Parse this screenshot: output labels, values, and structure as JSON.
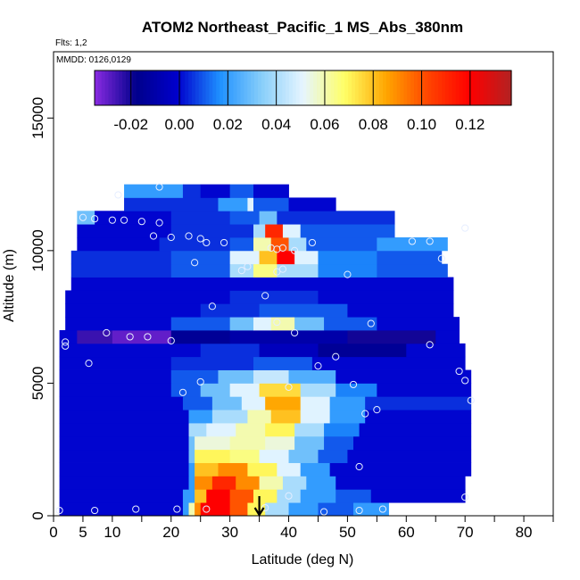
{
  "chart_data": {
    "type": "heatmap",
    "title": "ATOM2 Northeast_Pacific_1 MS_Abs_380nm",
    "annotations": [
      "Flts: 1,2",
      "MMDD: 0126,0129"
    ],
    "xlabel": "Latitude (deg N)",
    "ylabel": "Altitude (m)",
    "xlim": [
      0,
      85
    ],
    "ylim": [
      0,
      17500
    ],
    "x_tick_labels": [
      "0",
      "5",
      "10",
      "20",
      "30",
      "40",
      "50",
      "60",
      "70",
      "80"
    ],
    "x_tick_values": [
      0,
      5,
      10,
      20,
      30,
      40,
      50,
      60,
      70,
      80
    ],
    "x_minor_ticks": [
      15,
      25,
      35,
      45,
      55,
      65,
      75,
      85
    ],
    "y_tick_labels": [
      "0",
      "5000",
      "10000",
      "15000"
    ],
    "y_tick_values": [
      0,
      5000,
      10000,
      15000
    ],
    "colorbar": {
      "min": -0.035,
      "max": 0.137,
      "tick_labels": [
        "-0.02",
        "0.00",
        "0.02",
        "0.04",
        "0.06",
        "0.08",
        "0.10",
        "0.12"
      ],
      "tick_values": [
        -0.02,
        0.0,
        0.02,
        0.04,
        0.06,
        0.08,
        0.1,
        0.12
      ],
      "colors": [
        "#8a2be2",
        "#00008b",
        "#0000cd",
        "#1e90ff",
        "#87cefa",
        "#e6f5ff",
        "#ffff66",
        "#ffa500",
        "#ff4500",
        "#ff0000",
        "#b22222"
      ]
    },
    "data_layout": "each layer: altitude range [y0,y1] in m; segments [lat_start, lat_end, value]",
    "layers": [
      {
        "y": [
          0,
          500
        ],
        "segments": [
          [
            1,
            22,
            0.0
          ],
          [
            22,
            23,
            0.02
          ],
          [
            23,
            24,
            0.06
          ],
          [
            24,
            25,
            0.09
          ],
          [
            25,
            30,
            0.12
          ],
          [
            30,
            33,
            0.1
          ],
          [
            33,
            36,
            0.07
          ],
          [
            36,
            40,
            0.04
          ],
          [
            40,
            45,
            0.02
          ],
          [
            45,
            51,
            0.01
          ],
          [
            51,
            57,
            0.02
          ]
        ]
      },
      {
        "y": [
          500,
          1000
        ],
        "segments": [
          [
            1,
            22,
            0.0
          ],
          [
            22,
            24,
            0.02
          ],
          [
            24,
            26,
            0.08
          ],
          [
            26,
            30,
            0.12
          ],
          [
            30,
            34,
            0.1
          ],
          [
            34,
            38,
            0.07
          ],
          [
            38,
            42,
            0.04
          ],
          [
            42,
            48,
            0.02
          ],
          [
            48,
            54,
            0.01
          ],
          [
            54,
            70,
            0.0
          ]
        ]
      },
      {
        "y": [
          1000,
          1500
        ],
        "segments": [
          [
            1,
            23,
            0.0
          ],
          [
            23,
            24,
            0.02
          ],
          [
            24,
            27,
            0.09
          ],
          [
            27,
            31,
            0.11
          ],
          [
            31,
            35,
            0.09
          ],
          [
            35,
            39,
            0.06
          ],
          [
            39,
            43,
            0.04
          ],
          [
            43,
            48,
            0.02
          ],
          [
            48,
            70,
            0.0
          ]
        ]
      },
      {
        "y": [
          1500,
          2000
        ],
        "segments": [
          [
            1,
            23,
            0.0
          ],
          [
            23,
            24,
            0.02
          ],
          [
            24,
            28,
            0.08
          ],
          [
            28,
            33,
            0.09
          ],
          [
            33,
            38,
            0.07
          ],
          [
            38,
            42,
            0.05
          ],
          [
            42,
            47,
            0.02
          ],
          [
            47,
            71,
            0.0
          ]
        ]
      },
      {
        "y": [
          2000,
          2500
        ],
        "segments": [
          [
            1,
            23,
            0.0
          ],
          [
            23,
            24,
            0.03
          ],
          [
            24,
            30,
            0.07
          ],
          [
            30,
            35,
            0.065
          ],
          [
            35,
            40,
            0.05
          ],
          [
            40,
            45,
            0.03
          ],
          [
            45,
            50,
            0.01
          ],
          [
            50,
            71,
            0.0
          ]
        ]
      },
      {
        "y": [
          2500,
          3000
        ],
        "segments": [
          [
            1,
            23,
            0.0
          ],
          [
            23,
            24,
            0.03
          ],
          [
            24,
            30,
            0.055
          ],
          [
            30,
            36,
            0.06
          ],
          [
            36,
            41,
            0.055
          ],
          [
            41,
            46,
            0.03
          ],
          [
            46,
            51,
            0.01
          ],
          [
            51,
            71,
            0.0
          ]
        ]
      },
      {
        "y": [
          3000,
          3500
        ],
        "segments": [
          [
            1,
            23,
            0.0
          ],
          [
            23,
            26,
            0.04
          ],
          [
            26,
            31,
            0.05
          ],
          [
            31,
            36,
            0.06
          ],
          [
            36,
            41,
            0.07
          ],
          [
            41,
            46,
            0.04
          ],
          [
            46,
            52,
            0.015
          ],
          [
            52,
            71,
            0.0
          ]
        ]
      },
      {
        "y": [
          3500,
          4000
        ],
        "segments": [
          [
            1,
            23,
            0.0
          ],
          [
            23,
            27,
            0.02
          ],
          [
            27,
            33,
            0.04
          ],
          [
            33,
            37,
            0.06
          ],
          [
            37,
            42,
            0.08
          ],
          [
            42,
            47,
            0.05
          ],
          [
            47,
            53,
            0.02
          ],
          [
            53,
            71,
            0.0
          ]
        ]
      },
      {
        "y": [
          4000,
          4500
        ],
        "segments": [
          [
            1,
            22,
            0.0
          ],
          [
            22,
            27,
            0.01
          ],
          [
            27,
            32,
            0.03
          ],
          [
            32,
            36,
            0.05
          ],
          [
            36,
            42,
            0.085
          ],
          [
            42,
            47,
            0.05
          ],
          [
            47,
            53,
            0.02
          ],
          [
            53,
            71,
            0.005
          ]
        ]
      },
      {
        "y": [
          4500,
          5000
        ],
        "segments": [
          [
            1,
            20,
            0.0
          ],
          [
            20,
            25,
            0.01
          ],
          [
            25,
            30,
            0.03
          ],
          [
            30,
            35,
            0.05
          ],
          [
            35,
            42,
            0.075
          ],
          [
            42,
            48,
            0.04
          ],
          [
            48,
            55,
            0.015
          ],
          [
            55,
            71,
            0.0
          ]
        ]
      },
      {
        "y": [
          5000,
          5500
        ],
        "segments": [
          [
            1,
            20,
            0.0
          ],
          [
            20,
            28,
            0.01
          ],
          [
            28,
            34,
            0.03
          ],
          [
            34,
            40,
            0.045
          ],
          [
            40,
            48,
            0.025
          ],
          [
            48,
            71,
            0.0
          ]
        ]
      },
      {
        "y": [
          5500,
          6000
        ],
        "segments": [
          [
            1,
            20,
            0.0
          ],
          [
            20,
            34,
            0.005
          ],
          [
            34,
            44,
            0.01
          ],
          [
            44,
            70,
            0.0
          ]
        ]
      },
      {
        "y": [
          6000,
          6500
        ],
        "segments": [
          [
            1,
            25,
            0.0
          ],
          [
            25,
            35,
            0.005
          ],
          [
            35,
            45,
            -0.005
          ],
          [
            45,
            60,
            -0.015
          ],
          [
            60,
            70,
            0.0
          ]
        ]
      },
      {
        "y": [
          6500,
          7000
        ],
        "segments": [
          [
            1,
            4,
            0.0
          ],
          [
            4,
            10,
            -0.025
          ],
          [
            10,
            20,
            -0.03
          ],
          [
            20,
            30,
            -0.015
          ],
          [
            30,
            50,
            -0.01
          ],
          [
            50,
            65,
            -0.02
          ],
          [
            65,
            69,
            0.0
          ]
        ]
      },
      {
        "y": [
          7000,
          7500
        ],
        "segments": [
          [
            2,
            20,
            0.0
          ],
          [
            20,
            30,
            0.01
          ],
          [
            30,
            34,
            0.03
          ],
          [
            34,
            37,
            0.05
          ],
          [
            37,
            41,
            0.06
          ],
          [
            41,
            46,
            0.03
          ],
          [
            46,
            55,
            0.01
          ],
          [
            55,
            69,
            0.0
          ]
        ]
      },
      {
        "y": [
          7500,
          8000
        ],
        "segments": [
          [
            2,
            25,
            0.0
          ],
          [
            25,
            35,
            0.005
          ],
          [
            35,
            50,
            0.01
          ],
          [
            50,
            68,
            0.0
          ]
        ]
      },
      {
        "y": [
          8000,
          8500
        ],
        "segments": [
          [
            2,
            30,
            0.0
          ],
          [
            30,
            45,
            0.005
          ],
          [
            45,
            68,
            0.0
          ]
        ]
      },
      {
        "y": [
          8500,
          9000
        ],
        "segments": [
          [
            3,
            68,
            0.0
          ]
        ]
      },
      {
        "y": [
          9000,
          9500
        ],
        "segments": [
          [
            3,
            20,
            0.005
          ],
          [
            20,
            30,
            0.01
          ],
          [
            30,
            34,
            0.04
          ],
          [
            34,
            38,
            0.065
          ],
          [
            38,
            45,
            0.04
          ],
          [
            45,
            55,
            0.015
          ],
          [
            55,
            67,
            0.01
          ]
        ]
      },
      {
        "y": [
          9500,
          10000
        ],
        "segments": [
          [
            3,
            20,
            0.005
          ],
          [
            20,
            30,
            0.01
          ],
          [
            30,
            35,
            0.05
          ],
          [
            35,
            38,
            0.08
          ],
          [
            38,
            41,
            0.12
          ],
          [
            41,
            45,
            0.05
          ],
          [
            45,
            55,
            0.015
          ],
          [
            55,
            66,
            0.01
          ]
        ]
      },
      {
        "y": [
          10000,
          10500
        ],
        "segments": [
          [
            4,
            18,
            0.0
          ],
          [
            18,
            30,
            0.005
          ],
          [
            30,
            34,
            0.01
          ],
          [
            34,
            37,
            0.06
          ],
          [
            37,
            40,
            0.1
          ],
          [
            40,
            43,
            0.04
          ],
          [
            43,
            55,
            0.01
          ],
          [
            55,
            67,
            0.02
          ]
        ]
      },
      {
        "y": [
          10500,
          11000
        ],
        "segments": [
          [
            4,
            20,
            0.0
          ],
          [
            20,
            34,
            0.005
          ],
          [
            34,
            36,
            0.04
          ],
          [
            36,
            39,
            0.11
          ],
          [
            39,
            42,
            0.05
          ],
          [
            42,
            58,
            0.01
          ]
        ]
      },
      {
        "y": [
          11000,
          11500
        ],
        "segments": [
          [
            4,
            7,
            0.03
          ],
          [
            7,
            20,
            0.0
          ],
          [
            20,
            30,
            0.005
          ],
          [
            30,
            35,
            0.01
          ],
          [
            35,
            38,
            0.03
          ],
          [
            38,
            58,
            0.005
          ]
        ]
      },
      {
        "y": [
          11500,
          12000
        ],
        "segments": [
          [
            12,
            28,
            0.005
          ],
          [
            28,
            33,
            0.02
          ],
          [
            33,
            34,
            0.05
          ],
          [
            34,
            40,
            0.01
          ],
          [
            40,
            48,
            0.0
          ]
        ]
      },
      {
        "y": [
          12000,
          12500
        ],
        "segments": [
          [
            12,
            22,
            0.02
          ],
          [
            22,
            25,
            0.005
          ],
          [
            25,
            30,
            0.0
          ],
          [
            30,
            34,
            0.01
          ],
          [
            34,
            40,
            0.0
          ]
        ]
      }
    ],
    "sample_points": [
      [
        1,
        200
      ],
      [
        7,
        200
      ],
      [
        14,
        250
      ],
      [
        21,
        250
      ],
      [
        26,
        250
      ],
      [
        36,
        300
      ],
      [
        46,
        150
      ],
      [
        52,
        200
      ],
      [
        56,
        250
      ],
      [
        40,
        750
      ],
      [
        70,
        700
      ],
      [
        52,
        1850
      ],
      [
        53,
        3850
      ],
      [
        55,
        4000
      ],
      [
        71,
        4350
      ],
      [
        22,
        4650
      ],
      [
        25,
        5050
      ],
      [
        40,
        4850
      ],
      [
        51,
        4950
      ],
      [
        70,
        5100
      ],
      [
        6,
        5750
      ],
      [
        45,
        5650
      ],
      [
        48,
        6000
      ],
      [
        69,
        5450
      ],
      [
        2,
        6400
      ],
      [
        2,
        6550
      ],
      [
        9,
        6900
      ],
      [
        13,
        6750
      ],
      [
        16,
        6750
      ],
      [
        20,
        6600
      ],
      [
        38,
        7300
      ],
      [
        41,
        6900
      ],
      [
        54,
        7250
      ],
      [
        64,
        6450
      ],
      [
        27,
        7900
      ],
      [
        36,
        8300
      ],
      [
        24,
        9550
      ],
      [
        32,
        9250
      ],
      [
        33,
        9400
      ],
      [
        38,
        9200
      ],
      [
        39,
        9300
      ],
      [
        50,
        9100
      ],
      [
        66,
        9700
      ],
      [
        37,
        10100
      ],
      [
        38,
        10050
      ],
      [
        39,
        10100
      ],
      [
        41,
        10000
      ],
      [
        44,
        10300
      ],
      [
        26,
        10300
      ],
      [
        17,
        10550
      ],
      [
        20,
        10500
      ],
      [
        23,
        10550
      ],
      [
        25,
        10450
      ],
      [
        29,
        10300
      ],
      [
        61,
        10350
      ],
      [
        64,
        10350
      ],
      [
        5,
        11250
      ],
      [
        7,
        11200
      ],
      [
        10,
        11150
      ],
      [
        12,
        11150
      ],
      [
        15,
        11100
      ],
      [
        18,
        11050
      ],
      [
        70,
        10850
      ],
      [
        11,
        12100
      ],
      [
        18,
        12400
      ]
    ],
    "arrow_latitude": 35
  }
}
